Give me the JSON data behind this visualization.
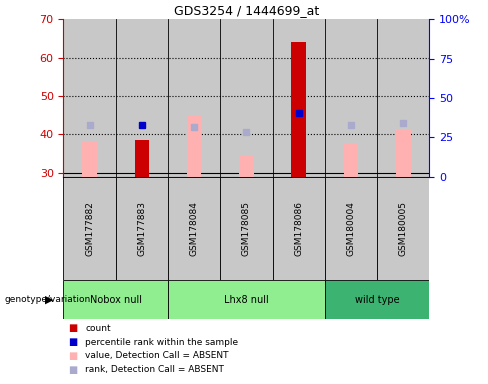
{
  "title": "GDS3254 / 1444699_at",
  "samples": [
    "GSM177882",
    "GSM177883",
    "GSM178084",
    "GSM178085",
    "GSM178086",
    "GSM180004",
    "GSM180005"
  ],
  "count_values": [
    null,
    38.5,
    null,
    null,
    64.0,
    null,
    null
  ],
  "percentile_rank": [
    null,
    42.5,
    null,
    null,
    45.5,
    null,
    null
  ],
  "absent_value": [
    38.0,
    null,
    45.0,
    34.5,
    45.0,
    37.5,
    41.5
  ],
  "absent_rank": [
    42.5,
    null,
    42.0,
    40.5,
    null,
    42.5,
    43.0
  ],
  "ylim_left": [
    29,
    70
  ],
  "ylim_right": [
    0,
    100
  ],
  "yticks_left": [
    30,
    40,
    50,
    60,
    70
  ],
  "yticks_right": [
    0,
    25,
    50,
    75,
    100
  ],
  "ytick_labels_right": [
    "0",
    "25",
    "50",
    "75",
    "100%"
  ],
  "bar_bottom": 29,
  "left_axis_color": "#cc0000",
  "right_axis_color": "#0000ff",
  "sample_bg_color": "#c8c8c8",
  "groups_info": [
    {
      "name": "Nobox null",
      "start": 0,
      "end": 1,
      "color": "#90EE90"
    },
    {
      "name": "Lhx8 null",
      "start": 2,
      "end": 4,
      "color": "#90EE90"
    },
    {
      "name": "wild type",
      "start": 5,
      "end": 6,
      "color": "#3CB371"
    }
  ],
  "legend_colors": [
    "#cc0000",
    "#0000cc",
    "#ffb0b0",
    "#aaaacc"
  ],
  "legend_labels": [
    "count",
    "percentile rank within the sample",
    "value, Detection Call = ABSENT",
    "rank, Detection Call = ABSENT"
  ],
  "absent_bar_color": "#ffb0b0",
  "absent_rank_color": "#aaaacc",
  "count_color": "#cc0000",
  "prank_color": "#0000cc"
}
